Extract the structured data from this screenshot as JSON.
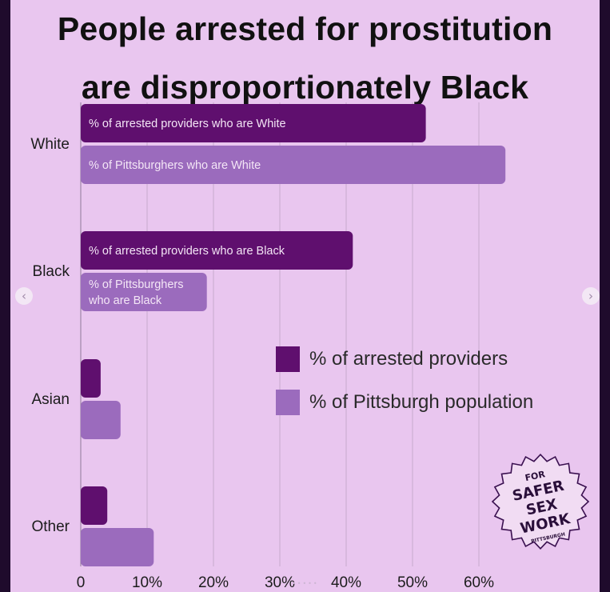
{
  "title_lines": [
    "People arrested for prostitution",
    "are disproportionately Black"
  ],
  "colors": {
    "arrested": "#5f0f6e",
    "population": "#9b6bbd",
    "background": "#e9c6ef",
    "grid": "#c7a9cd"
  },
  "chart_data": {
    "type": "bar",
    "orientation": "horizontal",
    "categories": [
      "White",
      "Black",
      "Asian",
      "Other"
    ],
    "series": [
      {
        "name": "% of arrested providers",
        "values": [
          52,
          41,
          3,
          4
        ]
      },
      {
        "name": "% of Pittsburgh population",
        "values": [
          64,
          19,
          6,
          11
        ]
      }
    ],
    "bar_labels": [
      [
        "% of arrested providers who are White",
        "% of Pittsburghers who are White"
      ],
      [
        "% of arrested providers who are Black",
        "% of Pittsburghers\nwho are Black"
      ],
      [
        "",
        ""
      ],
      [
        "",
        ""
      ]
    ],
    "x_ticks": [
      "0",
      "10%",
      "20%",
      "30%",
      "40%",
      "50%",
      "60%"
    ],
    "xlim": [
      0,
      65
    ],
    "grid": true,
    "legend_position": "center-right"
  },
  "legend": [
    {
      "label": "% of arrested providers",
      "color_key": "arrested"
    },
    {
      "label": "% of Pittsburgh population",
      "color_key": "population"
    }
  ],
  "badge": {
    "top": "FOR",
    "lines": [
      "SAFER",
      "SEX",
      "WORK"
    ],
    "bottom": "PITTSBURGH"
  },
  "nav": {
    "prev_icon": "chevron-left-icon",
    "next_icon": "chevron-right-icon"
  },
  "pagination_dots": "•••••"
}
